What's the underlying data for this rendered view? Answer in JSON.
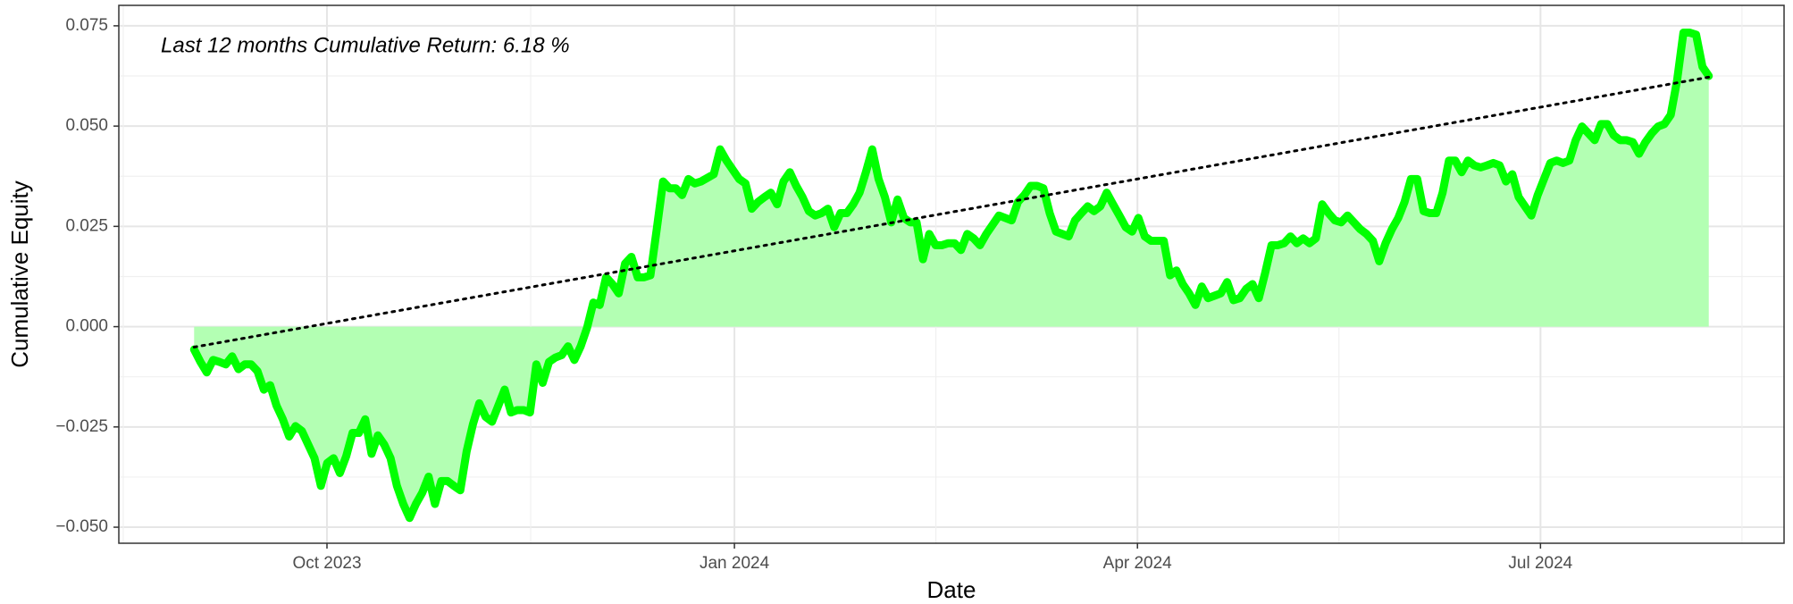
{
  "chart_data": {
    "type": "area",
    "annotation": "Last 12 months Cumulative Return: 6.18 %",
    "xlabel": "Date",
    "ylabel": "Cumulative Equity",
    "date_range": [
      "2023-09-01",
      "2024-08-08"
    ],
    "color": "#00ff00",
    "fill_color": "#b3ffb3",
    "values": [
      -0.0057,
      -0.0088,
      -0.0114,
      -0.0083,
      -0.0088,
      -0.0094,
      -0.0074,
      -0.0106,
      -0.0094,
      -0.0094,
      -0.0111,
      -0.0157,
      -0.0146,
      -0.0197,
      -0.0231,
      -0.0274,
      -0.0248,
      -0.026,
      -0.0294,
      -0.0328,
      -0.0397,
      -0.034,
      -0.0328,
      -0.0365,
      -0.0323,
      -0.0265,
      -0.0265,
      -0.0231,
      -0.0317,
      -0.0271,
      -0.0294,
      -0.0328,
      -0.0397,
      -0.0442,
      -0.0477,
      -0.0442,
      -0.0414,
      -0.0374,
      -0.0442,
      -0.0385,
      -0.0385,
      -0.0397,
      -0.0408,
      -0.0311,
      -0.0243,
      -0.0191,
      -0.0225,
      -0.0237,
      -0.0197,
      -0.0157,
      -0.0214,
      -0.0208,
      -0.0208,
      -0.0214,
      -0.0094,
      -0.014,
      -0.0088,
      -0.0077,
      -0.0071,
      -0.0049,
      -0.0083,
      -0.0049,
      -0.0003,
      0.006,
      0.0054,
      0.0123,
      0.0106,
      0.0083,
      0.0157,
      0.0174,
      0.0123,
      0.0123,
      0.0128,
      0.0243,
      0.0362,
      0.0345,
      0.0345,
      0.0328,
      0.0368,
      0.0357,
      0.0362,
      0.0371,
      0.038,
      0.0442,
      0.0414,
      0.0391,
      0.0368,
      0.0357,
      0.0294,
      0.0311,
      0.0323,
      0.0334,
      0.0305,
      0.0362,
      0.0385,
      0.0351,
      0.0323,
      0.0288,
      0.0277,
      0.0283,
      0.0294,
      0.0248,
      0.0283,
      0.0283,
      0.0305,
      0.0334,
      0.0385,
      0.0442,
      0.0368,
      0.0323,
      0.026,
      0.0317,
      0.0271,
      0.026,
      0.026,
      0.0168,
      0.0231,
      0.0203,
      0.0203,
      0.0208,
      0.0208,
      0.0191,
      0.0231,
      0.022,
      0.0203,
      0.0231,
      0.0254,
      0.0277,
      0.0271,
      0.0265,
      0.0311,
      0.0328,
      0.0351,
      0.0351,
      0.0345,
      0.0283,
      0.0237,
      0.0231,
      0.0225,
      0.0265,
      0.0283,
      0.03,
      0.0288,
      0.03,
      0.0334,
      0.0305,
      0.0277,
      0.0248,
      0.0237,
      0.0271,
      0.0225,
      0.0214,
      0.0214,
      0.0214,
      0.0128,
      0.014,
      0.0106,
      0.0083,
      0.0054,
      0.01,
      0.0071,
      0.0077,
      0.0083,
      0.0111,
      0.0066,
      0.0071,
      0.0094,
      0.0106,
      0.0071,
      0.0134,
      0.0203,
      0.0203,
      0.0208,
      0.0225,
      0.0208,
      0.022,
      0.0208,
      0.022,
      0.0305,
      0.0283,
      0.0265,
      0.026,
      0.0277,
      0.026,
      0.0243,
      0.0231,
      0.0214,
      0.0163,
      0.0208,
      0.0243,
      0.0271,
      0.0311,
      0.0368,
      0.0368,
      0.0288,
      0.0283,
      0.0283,
      0.0334,
      0.0414,
      0.0414,
      0.0385,
      0.0414,
      0.0402,
      0.0397,
      0.0402,
      0.0408,
      0.0402,
      0.0362,
      0.038,
      0.0323,
      0.03,
      0.0277,
      0.0328,
      0.0368,
      0.0408,
      0.0414,
      0.0408,
      0.0414,
      0.0465,
      0.0499,
      0.0482,
      0.0465,
      0.0505,
      0.0505,
      0.0477,
      0.0465,
      0.0465,
      0.046,
      0.0431,
      0.046,
      0.0482,
      0.0499,
      0.0505,
      0.0528,
      0.0614,
      0.0733,
      0.0733,
      0.0728,
      0.0648,
      0.0625
    ],
    "trend": {
      "values": [
        -0.0051,
        0.0622
      ],
      "color": "#000000",
      "style": "dotted"
    },
    "xlim": [
      "2023-08-15",
      "2024-08-25"
    ],
    "xticks": [
      {
        "value": "2023-10-01",
        "label": "Oct 2023"
      },
      {
        "value": "2024-01-01",
        "label": "Jan 2024"
      },
      {
        "value": "2024-04-01",
        "label": "Apr 2024"
      },
      {
        "value": "2024-07-01",
        "label": "Jul 2024"
      }
    ],
    "ylim": [
      -0.054,
      0.0801
    ],
    "yticks": [
      {
        "value": -0.05,
        "label": "−0.050"
      },
      {
        "value": -0.025,
        "label": "−0.025"
      },
      {
        "value": 0,
        "label": "0.000"
      },
      {
        "value": 0.025,
        "label": "0.025"
      },
      {
        "value": 0.05,
        "label": "0.050"
      },
      0.075
    ],
    "grid": true
  }
}
